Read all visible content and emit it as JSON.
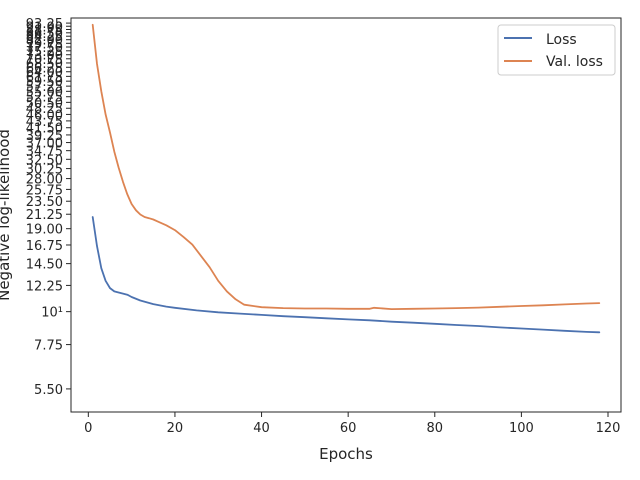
{
  "chart_data": {
    "type": "line",
    "title": "",
    "xlabel": "Epochs",
    "ylabel": "Negative log-likelihood",
    "y_scale": "log",
    "xlim": [
      -4,
      123
    ],
    "ylim": [
      4.6,
      97
    ],
    "x_ticks": [
      0,
      20,
      40,
      60,
      80,
      100,
      120
    ],
    "y_tick_labels": [
      "5.50",
      "7.75",
      "10¹",
      "12.25",
      "14.50",
      "16.75",
      "19.00",
      "21.25",
      "23.50",
      "25.75",
      "28.00",
      "30.25",
      "32.50",
      "34.75",
      "37.00",
      "39.25",
      "41.50",
      "43.75",
      "46.00",
      "48.25",
      "50.50",
      "52.75",
      "55.00",
      "57.25",
      "59.50",
      "61.75",
      "64.00",
      "66.25",
      "68.50",
      "70.75",
      "73.00",
      "75.25",
      "77.50",
      "79.75",
      "82.00",
      "84.25",
      "86.50",
      "88.75",
      "91.00",
      "93.25"
    ],
    "legend_position": "top-right",
    "grid": false,
    "series": [
      {
        "name": "Loss",
        "color": "#4c72b0",
        "x": [
          1,
          2,
          3,
          4,
          5,
          6,
          7,
          8,
          9,
          10,
          12,
          15,
          18,
          20,
          25,
          30,
          35,
          40,
          45,
          50,
          55,
          60,
          65,
          70,
          75,
          80,
          85,
          90,
          95,
          100,
          105,
          110,
          115,
          118
        ],
        "y": [
          20.8,
          16.6,
          14.0,
          12.7,
          12.0,
          11.7,
          11.6,
          11.5,
          11.4,
          11.2,
          10.9,
          10.6,
          10.4,
          10.3,
          10.1,
          9.95,
          9.85,
          9.75,
          9.65,
          9.58,
          9.5,
          9.42,
          9.35,
          9.25,
          9.18,
          9.1,
          9.02,
          8.95,
          8.85,
          8.78,
          8.7,
          8.62,
          8.55,
          8.52
        ]
      },
      {
        "name": "Val. loss",
        "color": "#dd8452",
        "x": [
          1,
          2,
          3,
          4,
          5,
          6,
          7,
          8,
          9,
          10,
          11,
          12,
          13,
          14,
          15,
          16,
          18,
          20,
          22,
          24,
          26,
          28,
          30,
          32,
          34,
          36,
          40,
          45,
          50,
          55,
          60,
          65,
          66,
          70,
          75,
          80,
          85,
          90,
          95,
          100,
          105,
          110,
          115,
          118
        ],
        "y": [
          92.0,
          68.0,
          55.0,
          46.0,
          40.0,
          34.5,
          30.5,
          27.3,
          24.8,
          23.0,
          21.9,
          21.2,
          20.8,
          20.6,
          20.4,
          20.1,
          19.5,
          18.8,
          17.8,
          16.8,
          15.4,
          14.1,
          12.7,
          11.7,
          11.0,
          10.55,
          10.35,
          10.28,
          10.25,
          10.25,
          10.22,
          10.22,
          10.3,
          10.2,
          10.22,
          10.25,
          10.28,
          10.32,
          10.38,
          10.45,
          10.5,
          10.58,
          10.65,
          10.68
        ]
      }
    ]
  }
}
